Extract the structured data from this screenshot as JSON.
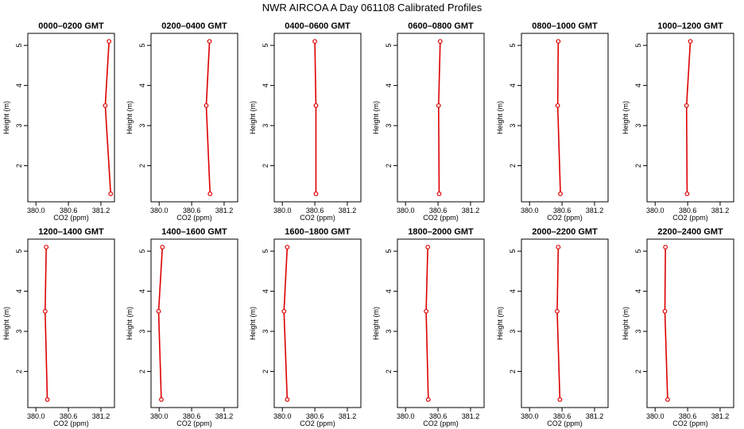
{
  "figure": {
    "title": "NWR AIRCOA A  Day 061108  Calibrated Profiles"
  },
  "style": {
    "line_color": "#dd0000",
    "axis_color": "#000000",
    "background": "#ffffff"
  },
  "chart_data": [
    {
      "type": "line",
      "title": "0000–0200 GMT",
      "xlabel": "CO2 (ppm)",
      "ylabel": "Height (m)",
      "xlim": [
        379.85,
        381.45
      ],
      "ylim": [
        1.1,
        5.3
      ],
      "xticks": [
        380.0,
        380.6,
        381.2
      ],
      "xtick_labels": [
        "380.0",
        "380.6",
        "381.2"
      ],
      "yticks": [
        2,
        3,
        4,
        5
      ],
      "ytick_labels": [
        "2",
        "3",
        "4",
        "5"
      ],
      "series": [
        {
          "points": [
            [
              381.38,
              1.3
            ],
            [
              381.28,
              3.5
            ],
            [
              381.35,
              5.1
            ]
          ]
        }
      ]
    },
    {
      "type": "line",
      "title": "0200–0400 GMT",
      "xlabel": "CO2 (ppm)",
      "ylabel": "Height (m)",
      "xlim": [
        379.85,
        381.45
      ],
      "ylim": [
        1.1,
        5.3
      ],
      "xticks": [
        380.0,
        380.6,
        381.2
      ],
      "xtick_labels": [
        "380.0",
        "380.6",
        "381.2"
      ],
      "yticks": [
        2,
        3,
        4,
        5
      ],
      "ytick_labels": [
        "2",
        "3",
        "4",
        "5"
      ],
      "series": [
        {
          "points": [
            [
              380.94,
              1.3
            ],
            [
              380.87,
              3.5
            ],
            [
              380.93,
              5.1
            ]
          ]
        }
      ]
    },
    {
      "type": "line",
      "title": "0400–0600 GMT",
      "xlabel": "CO2 (ppm)",
      "ylabel": "Height (m)",
      "xlim": [
        379.85,
        381.45
      ],
      "ylim": [
        1.1,
        5.3
      ],
      "xticks": [
        380.0,
        380.6,
        381.2
      ],
      "xtick_labels": [
        "380.0",
        "380.6",
        "381.2"
      ],
      "yticks": [
        2,
        3,
        4,
        5
      ],
      "ytick_labels": [
        "2",
        "3",
        "4",
        "5"
      ],
      "series": [
        {
          "points": [
            [
              380.62,
              1.3
            ],
            [
              380.62,
              3.5
            ],
            [
              380.6,
              5.1
            ]
          ]
        }
      ]
    },
    {
      "type": "line",
      "title": "0600–0800 GMT",
      "xlabel": "CO2 (ppm)",
      "ylabel": "Height (m)",
      "xlim": [
        379.85,
        381.45
      ],
      "ylim": [
        1.1,
        5.3
      ],
      "xticks": [
        380.0,
        380.6,
        381.2
      ],
      "xtick_labels": [
        "380.0",
        "380.6",
        "381.2"
      ],
      "yticks": [
        2,
        3,
        4,
        5
      ],
      "ytick_labels": [
        "2",
        "3",
        "4",
        "5"
      ],
      "series": [
        {
          "points": [
            [
              380.62,
              1.3
            ],
            [
              380.61,
              3.5
            ],
            [
              380.64,
              5.1
            ]
          ]
        }
      ]
    },
    {
      "type": "line",
      "title": "0800–1000 GMT",
      "xlabel": "CO2 (ppm)",
      "ylabel": "Height (m)",
      "xlim": [
        379.85,
        381.45
      ],
      "ylim": [
        1.1,
        5.3
      ],
      "xticks": [
        380.0,
        380.6,
        381.2
      ],
      "xtick_labels": [
        "380.0",
        "380.6",
        "381.2"
      ],
      "yticks": [
        2,
        3,
        4,
        5
      ],
      "ytick_labels": [
        "2",
        "3",
        "4",
        "5"
      ],
      "series": [
        {
          "points": [
            [
              380.57,
              1.3
            ],
            [
              380.52,
              3.5
            ],
            [
              380.53,
              5.1
            ]
          ]
        }
      ]
    },
    {
      "type": "line",
      "title": "1000–1200 GMT",
      "xlabel": "CO2 (ppm)",
      "ylabel": "Height (m)",
      "xlim": [
        379.85,
        381.45
      ],
      "ylim": [
        1.1,
        5.3
      ],
      "xticks": [
        380.0,
        380.6,
        381.2
      ],
      "xtick_labels": [
        "380.0",
        "380.6",
        "381.2"
      ],
      "yticks": [
        2,
        3,
        4,
        5
      ],
      "ytick_labels": [
        "2",
        "3",
        "4",
        "5"
      ],
      "series": [
        {
          "points": [
            [
              380.59,
              1.3
            ],
            [
              380.58,
              3.5
            ],
            [
              380.65,
              5.1
            ]
          ]
        }
      ]
    },
    {
      "type": "line",
      "title": "1200–1400 GMT",
      "xlabel": "CO2 (ppm)",
      "ylabel": "Height (m)",
      "xlim": [
        379.85,
        381.45
      ],
      "ylim": [
        1.1,
        5.3
      ],
      "xticks": [
        380.0,
        380.6,
        381.2
      ],
      "xtick_labels": [
        "380.0",
        "380.6",
        "381.2"
      ],
      "yticks": [
        2,
        3,
        4,
        5
      ],
      "ytick_labels": [
        "2",
        "3",
        "4",
        "5"
      ],
      "series": [
        {
          "points": [
            [
              380.21,
              1.3
            ],
            [
              380.17,
              3.5
            ],
            [
              380.19,
              5.1
            ]
          ]
        }
      ]
    },
    {
      "type": "line",
      "title": "1400–1600 GMT",
      "xlabel": "CO2 (ppm)",
      "ylabel": "Height (m)",
      "xlim": [
        379.85,
        381.45
      ],
      "ylim": [
        1.1,
        5.3
      ],
      "xticks": [
        380.0,
        380.6,
        381.2
      ],
      "xtick_labels": [
        "380.0",
        "380.6",
        "381.2"
      ],
      "yticks": [
        2,
        3,
        4,
        5
      ],
      "ytick_labels": [
        "2",
        "3",
        "4",
        "5"
      ],
      "series": [
        {
          "points": [
            [
              380.04,
              1.3
            ],
            [
              379.99,
              3.5
            ],
            [
              380.06,
              5.1
            ]
          ]
        }
      ]
    },
    {
      "type": "line",
      "title": "1600–1800 GMT",
      "xlabel": "CO2 (ppm)",
      "ylabel": "Height (m)",
      "xlim": [
        379.85,
        381.45
      ],
      "ylim": [
        1.1,
        5.3
      ],
      "xticks": [
        380.0,
        380.6,
        381.2
      ],
      "xtick_labels": [
        "380.0",
        "380.6",
        "381.2"
      ],
      "yticks": [
        2,
        3,
        4,
        5
      ],
      "ytick_labels": [
        "2",
        "3",
        "4",
        "5"
      ],
      "series": [
        {
          "points": [
            [
              380.09,
              1.3
            ],
            [
              380.03,
              3.5
            ],
            [
              380.09,
              5.1
            ]
          ]
        }
      ]
    },
    {
      "type": "line",
      "title": "1800–2000 GMT",
      "xlabel": "CO2 (ppm)",
      "ylabel": "Height (m)",
      "xlim": [
        379.85,
        381.45
      ],
      "ylim": [
        1.1,
        5.3
      ],
      "xticks": [
        380.0,
        380.6,
        381.2
      ],
      "xtick_labels": [
        "380.0",
        "380.6",
        "381.2"
      ],
      "yticks": [
        2,
        3,
        4,
        5
      ],
      "ytick_labels": [
        "2",
        "3",
        "4",
        "5"
      ],
      "series": [
        {
          "points": [
            [
              380.42,
              1.3
            ],
            [
              380.38,
              3.5
            ],
            [
              380.41,
              5.1
            ]
          ]
        }
      ]
    },
    {
      "type": "line",
      "title": "2000–2200 GMT",
      "xlabel": "CO2 (ppm)",
      "ylabel": "Height (m)",
      "xlim": [
        379.85,
        381.45
      ],
      "ylim": [
        1.1,
        5.3
      ],
      "xticks": [
        380.0,
        380.6,
        381.2
      ],
      "xtick_labels": [
        "380.0",
        "380.6",
        "381.2"
      ],
      "yticks": [
        2,
        3,
        4,
        5
      ],
      "ytick_labels": [
        "2",
        "3",
        "4",
        "5"
      ],
      "series": [
        {
          "points": [
            [
              380.56,
              1.3
            ],
            [
              380.51,
              3.5
            ],
            [
              380.53,
              5.1
            ]
          ]
        }
      ]
    },
    {
      "type": "line",
      "title": "2200–2400 GMT",
      "xlabel": "CO2 (ppm)",
      "ylabel": "Height (m)",
      "xlim": [
        379.85,
        381.45
      ],
      "ylim": [
        1.1,
        5.3
      ],
      "xticks": [
        380.0,
        380.6,
        381.2
      ],
      "xtick_labels": [
        "380.0",
        "380.6",
        "381.2"
      ],
      "yticks": [
        2,
        3,
        4,
        5
      ],
      "ytick_labels": [
        "2",
        "3",
        "4",
        "5"
      ],
      "series": [
        {
          "points": [
            [
              380.23,
              1.3
            ],
            [
              380.18,
              3.5
            ],
            [
              380.19,
              5.1
            ]
          ]
        }
      ]
    }
  ]
}
